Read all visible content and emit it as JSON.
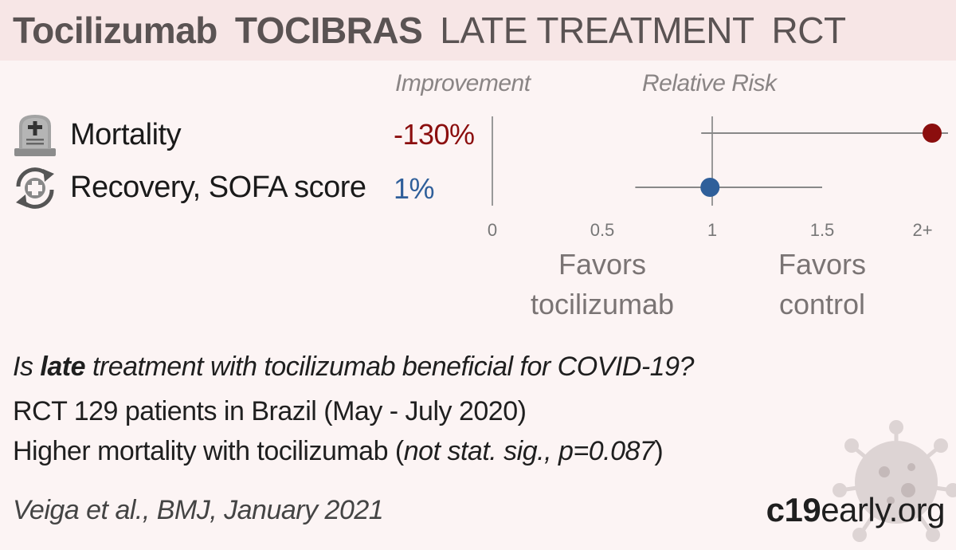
{
  "header": {
    "drug": "Tocilizumab",
    "trial": "TOCIBRAS",
    "stage": "LATE TREATMENT",
    "design": "RCT"
  },
  "columns": {
    "improvement": "Improvement",
    "relative_risk": "Relative Risk"
  },
  "outcomes": [
    {
      "icon": "tombstone-icon",
      "label": "Mortality",
      "improvement": "-130%",
      "color": "#8b0e0e"
    },
    {
      "icon": "recovery-icon",
      "label": "Recovery, SOFA score",
      "improvement": "1%",
      "color": "#2f5f9a"
    }
  ],
  "chart_data": {
    "type": "forest",
    "x_ticks": [
      "0",
      "0.5",
      "1",
      "1.5",
      "2+"
    ],
    "xlim": [
      0,
      2
    ],
    "reference_line": 1,
    "favors_left": "Favors tocilizumab",
    "favors_right": "Favors control",
    "series": [
      {
        "name": "Mortality",
        "estimate": 2.0,
        "ci_low": 0.95,
        "ci_high": 2.0,
        "color": "#8b0e0e"
      },
      {
        "name": "Recovery, SOFA score",
        "estimate": 0.99,
        "ci_low": 0.65,
        "ci_high": 1.5,
        "color": "#2f5f9a"
      }
    ]
  },
  "summary": {
    "line1_pre": "Is ",
    "line1_bold": "late",
    "line1_post": " treatment with tocilizumab beneficial for COVID-19?",
    "line2": "RCT 129 patients in Brazil (May - July 2020)",
    "line3_pre": "Higher mortality with tocilizumab (",
    "line3_ital": "not stat. sig., p=0.087",
    "line3_post": ")"
  },
  "citation": "Veiga et al., BMJ, January 2021",
  "brand": {
    "bold": "c19",
    "rest": "early.org"
  }
}
